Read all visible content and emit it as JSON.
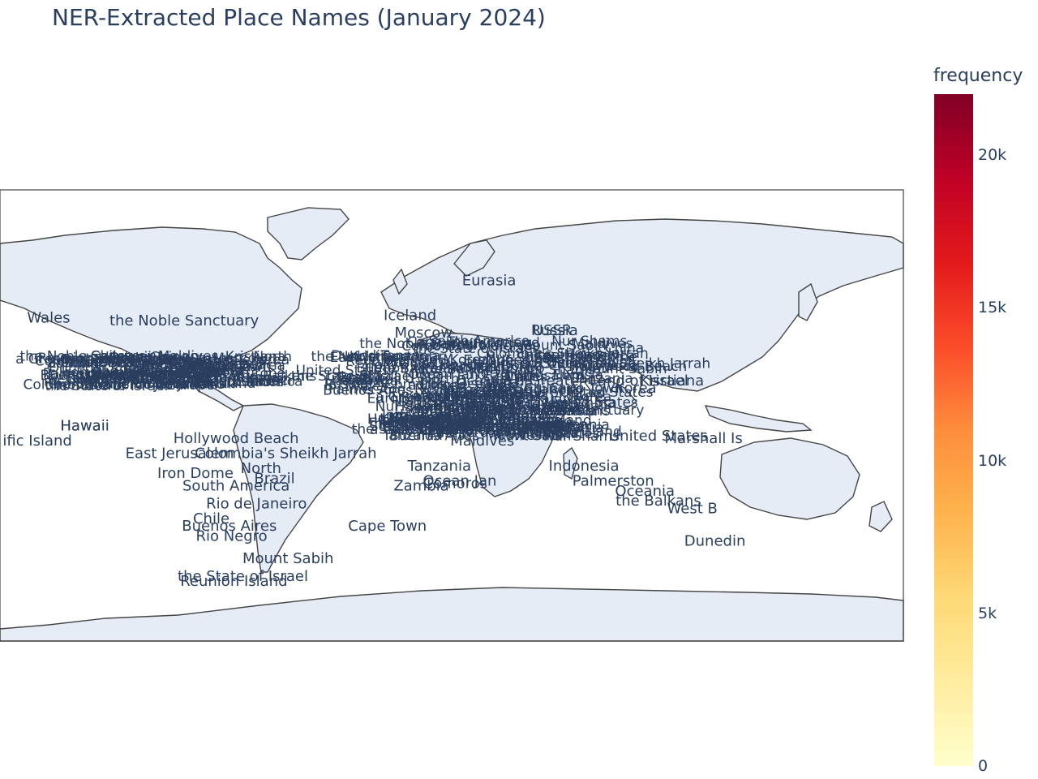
{
  "chart_data": {
    "type": "scatter",
    "title": "NER-Extracted Place Names (January 2024)",
    "projection": "equirectangular",
    "colorbar": {
      "title": "frequency",
      "range": [
        0,
        22000
      ],
      "ticks": [
        {
          "value": 0,
          "label": "0"
        },
        {
          "value": 5000,
          "label": "5k"
        },
        {
          "value": 10000,
          "label": "10k"
        },
        {
          "value": 15000,
          "label": "15k"
        },
        {
          "value": 20000,
          "label": "20k"
        }
      ],
      "colorscale": [
        "#ffffcc",
        "#ffeda0",
        "#fed976",
        "#feb24c",
        "#fd8d3c",
        "#fc4e2a",
        "#e31a1c",
        "#bd0026",
        "#800026"
      ]
    },
    "colors": {
      "land": "#e5ecf6",
      "coast": "#444444",
      "text": "#2a3f5f",
      "dense": "#2a3f5f"
    },
    "labels": [
      {
        "text": "Eurasia",
        "lon": 15,
        "lat": 52
      },
      {
        "text": "Wales",
        "lon": -180,
        "lat": 37
      },
      {
        "text": "the Noble Sanctuary",
        "lon": -120,
        "lat": 36
      },
      {
        "text": "Iceland",
        "lon": -20,
        "lat": 38
      },
      {
        "text": "USSR",
        "lon": 43,
        "lat": 32
      },
      {
        "text": "Russia",
        "lon": 44,
        "lat": 32
      },
      {
        "text": "Hawaii",
        "lon": -164,
        "lat": -6
      },
      {
        "text": "ific Island",
        "lon": -185,
        "lat": -12
      },
      {
        "text": "Hollywood Beach",
        "lon": -97,
        "lat": -11
      },
      {
        "text": "East Jerusalem",
        "lon": -122,
        "lat": -17
      },
      {
        "text": "Colombia's Sheikh Jarrah",
        "lon": -75,
        "lat": -17
      },
      {
        "text": "North",
        "lon": -86,
        "lat": -23
      },
      {
        "text": "Iron Dome",
        "lon": -115,
        "lat": -25
      },
      {
        "text": "Brazil",
        "lon": -80,
        "lat": -27
      },
      {
        "text": "South America",
        "lon": -97,
        "lat": -30
      },
      {
        "text": "Rio de Janeiro",
        "lon": -88,
        "lat": -37
      },
      {
        "text": "Chile",
        "lon": -108,
        "lat": -43
      },
      {
        "text": "Buenos Aires",
        "lon": -100,
        "lat": -46
      },
      {
        "text": "Rio Negro",
        "lon": -99,
        "lat": -50
      },
      {
        "text": "Mount Sabih",
        "lon": -74,
        "lat": -59
      },
      {
        "text": "the State of Israel",
        "lon": -94,
        "lat": -66
      },
      {
        "text": "Reunion Island",
        "lon": -98,
        "lat": -68
      },
      {
        "text": "Tanzania",
        "lon": -7,
        "lat": -22
      },
      {
        "text": "Comoros",
        "lon": 0,
        "lat": -29
      },
      {
        "text": "Zambia",
        "lon": -15,
        "lat": -30
      },
      {
        "text": "Cape Town",
        "lon": -30,
        "lat": -46
      },
      {
        "text": "Ocean Jan",
        "lon": 2,
        "lat": -28
      },
      {
        "text": "Indonesia",
        "lon": 57,
        "lat": -22
      },
      {
        "text": "Palmerston",
        "lon": 70,
        "lat": -28
      },
      {
        "text": "Oceania",
        "lon": 84,
        "lat": -32
      },
      {
        "text": "the Balkans",
        "lon": 90,
        "lat": -36
      },
      {
        "text": "West B",
        "lon": 105,
        "lat": -39
      },
      {
        "text": "Dunedin",
        "lon": 115,
        "lat": -52
      },
      {
        "text": "Marshall Is",
        "lon": 110,
        "lat": -11
      },
      {
        "text": "United States",
        "lon": 90,
        "lat": -10
      },
      {
        "text": "a United States",
        "lon": 34,
        "lat": 19
      },
      {
        "text": "a Greater Land of Israel",
        "lon": 65,
        "lat": 12
      },
      {
        "text": "Kristiana",
        "lon": 96,
        "lat": 12
      },
      {
        "text": "Korea",
        "lon": 80,
        "lat": 9
      },
      {
        "text": "China",
        "lon": 62,
        "lat": 3
      },
      {
        "text": "Europe",
        "lon": 15,
        "lat": 20
      },
      {
        "text": "Nur Shams",
        "lon": 31,
        "lat": 21
      },
      {
        "text": "Moscow",
        "lon": -14,
        "lat": 31
      },
      {
        "text": "Maldives",
        "lon": 12,
        "lat": -12
      },
      {
        "text": "Hawaii",
        "lon": -164,
        "lat": -6
      }
    ],
    "dense_clusters": [
      {
        "lon_min": -170,
        "lon_max": -75,
        "lat_min": 10,
        "lat_max": 22
      },
      {
        "lon_min": -50,
        "lon_max": 80,
        "lat_min": 5,
        "lat_max": 28
      },
      {
        "lon_min": -20,
        "lon_max": 60,
        "lat_min": -10,
        "lat_max": 5
      }
    ]
  }
}
